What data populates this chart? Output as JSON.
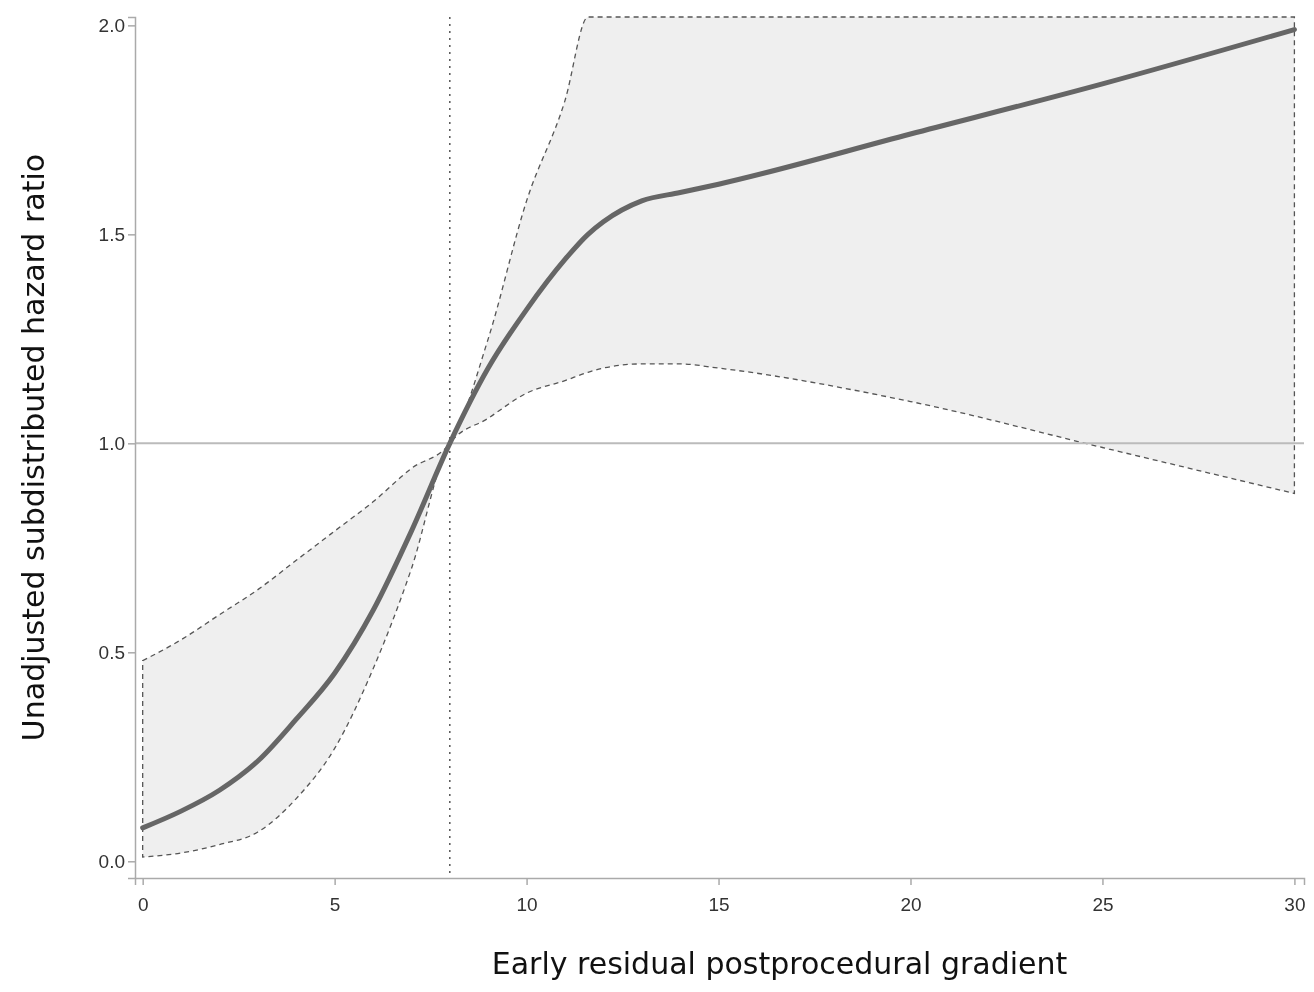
{
  "chart_data": {
    "type": "line",
    "xlabel": "Early residual postprocedural gradient",
    "ylabel": "Unadjusted subdistributed hazard ratio",
    "xlim": [
      -0.2,
      30.25
    ],
    "ylim": [
      -0.04,
      2.02
    ],
    "xticks": [
      0,
      5,
      10,
      15,
      20,
      25,
      30
    ],
    "yticks": [
      {
        "value": 0,
        "label": "0.0"
      },
      {
        "value": 0.5,
        "label": "0.5"
      },
      {
        "value": 1,
        "label": "1.0"
      },
      {
        "value": 1.5,
        "label": "1.5"
      },
      {
        "value": 2,
        "label": "2.0"
      }
    ],
    "grid": false,
    "marker": "none",
    "line_style": "solid",
    "series": [
      {
        "color": "#666666",
        "x": [
          0,
          1,
          2,
          3,
          4,
          5,
          6,
          7,
          8,
          9,
          10,
          11,
          11.6,
          12,
          13,
          14,
          15,
          20,
          25,
          30
        ],
        "values": [
          0.08,
          0.12,
          0.17,
          0.24,
          0.34,
          0.45,
          0.6,
          0.79,
          1.0,
          1.18,
          1.32,
          1.44,
          1.5,
          1.53,
          1.58,
          1.6,
          1.62,
          1.74,
          1.86,
          1.99
        ],
        "lower": [
          0.01,
          0.02,
          0.04,
          0.07,
          0.15,
          0.27,
          0.46,
          0.7,
          1.0,
          1.06,
          1.12,
          1.15,
          1.17,
          1.18,
          1.19,
          1.19,
          1.18,
          1.1,
          0.99,
          0.88
        ],
        "upper": [
          0.48,
          0.53,
          0.59,
          0.65,
          0.72,
          0.79,
          0.86,
          0.94,
          1.0,
          1.25,
          1.58,
          1.82,
          2.02,
          2.02,
          2.02,
          2.02,
          2.02,
          2.02,
          2.02,
          2.02
        ]
      }
    ],
    "ref_lines": [
      {
        "axis": "y",
        "value": 1,
        "color": "#bbbbbb",
        "line_style": "solid"
      },
      {
        "axis": "x",
        "value": 8,
        "color": "#555555",
        "line_style": "dotted"
      }
    ]
  }
}
